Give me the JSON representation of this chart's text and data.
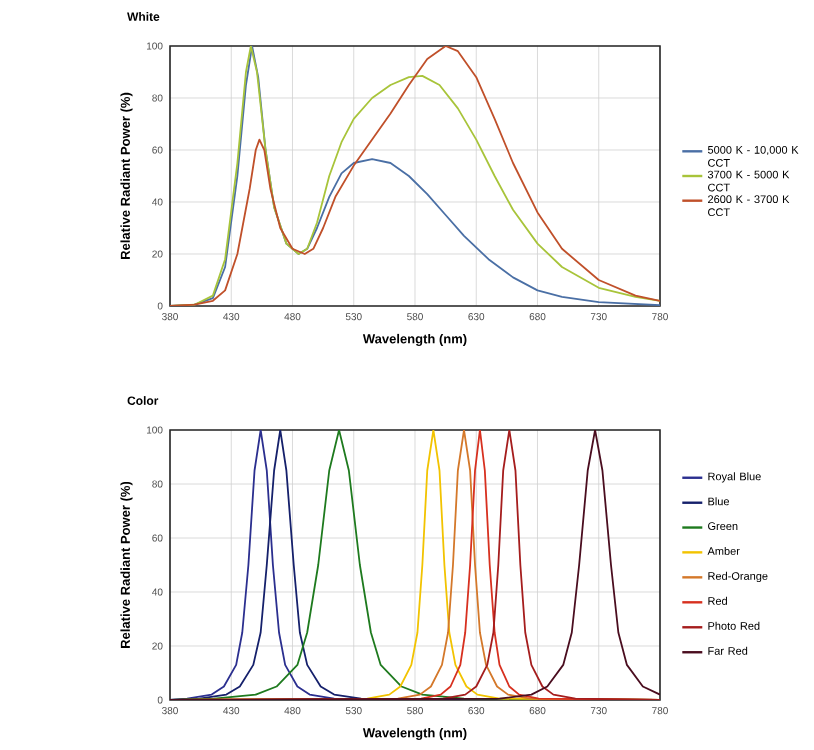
{
  "chart_data": [
    {
      "type": "line",
      "title": "White",
      "xlabel": "Wavelength (nm)",
      "ylabel": "Relative Radiant Power (%)",
      "xlim": [
        380,
        780
      ],
      "ylim": [
        0,
        100
      ],
      "xticks": [
        380,
        430,
        480,
        530,
        580,
        630,
        680,
        730,
        780
      ],
      "yticks": [
        0,
        20,
        40,
        60,
        80,
        100
      ],
      "grid": true,
      "legend": "right",
      "series": [
        {
          "name": "5000 K - 10,000 K CCT",
          "color": "#4a6fa5",
          "x": [
            380,
            400,
            415,
            425,
            435,
            442,
            447,
            452,
            458,
            465,
            475,
            485,
            492,
            500,
            510,
            520,
            530,
            545,
            560,
            575,
            590,
            605,
            620,
            640,
            660,
            680,
            700,
            730,
            780
          ],
          "values": [
            0,
            0.5,
            3,
            15,
            50,
            85,
            100,
            88,
            60,
            38,
            24,
            20,
            22,
            30,
            42,
            51,
            55,
            56.5,
            55,
            50,
            43,
            35,
            27,
            18,
            11,
            6,
            3.5,
            1.5,
            0.3
          ]
        },
        {
          "name": "3700 K - 5000 K CCT",
          "color": "#a8c43a",
          "x": [
            380,
            400,
            415,
            425,
            435,
            442,
            446,
            451,
            458,
            465,
            475,
            485,
            492,
            500,
            510,
            520,
            530,
            545,
            560,
            575,
            586,
            600,
            615,
            630,
            645,
            660,
            680,
            700,
            730,
            760,
            780
          ],
          "values": [
            0,
            0.5,
            4,
            18,
            55,
            90,
            100,
            90,
            60,
            38,
            24,
            20,
            22,
            32,
            50,
            63,
            72,
            80,
            85,
            88,
            88.5,
            85,
            76,
            64,
            50,
            37,
            24,
            15,
            7,
            3.5,
            2
          ]
        },
        {
          "name": "2600 K - 3700 K CCT",
          "color": "#c0502a",
          "x": [
            380,
            400,
            415,
            425,
            435,
            445,
            450,
            453,
            457,
            462,
            470,
            480,
            490,
            497,
            505,
            515,
            530,
            545,
            560,
            575,
            590,
            605,
            615,
            630,
            645,
            660,
            680,
            700,
            730,
            760,
            780
          ],
          "values": [
            0,
            0.5,
            2,
            6,
            20,
            45,
            60,
            64,
            60,
            45,
            30,
            22,
            20,
            22,
            30,
            42,
            54,
            64,
            74,
            85,
            95,
            100,
            98,
            88,
            72,
            55,
            36,
            22,
            10,
            4,
            2
          ]
        }
      ]
    },
    {
      "type": "line",
      "title": "Color",
      "xlabel": "Wavelength (nm)",
      "ylabel": "Relative Radiant Power (%)",
      "xlim": [
        380,
        780
      ],
      "ylim": [
        0,
        100
      ],
      "xticks": [
        380,
        430,
        480,
        530,
        580,
        630,
        680,
        730,
        780
      ],
      "yticks": [
        0,
        20,
        40,
        60,
        80,
        100
      ],
      "grid": true,
      "legend": "right",
      "series": [
        {
          "name": "Royal Blue",
          "color": "#2b2f8f",
          "x": [
            380,
            394,
            414,
            424,
            434,
            439,
            444,
            449,
            454,
            459,
            464,
            469,
            474,
            484,
            494,
            514,
            780
          ],
          "values": [
            0,
            0.5,
            2,
            5,
            13,
            25,
            50,
            85,
            100,
            85,
            50,
            25,
            13,
            5,
            2,
            0.5,
            0
          ]
        },
        {
          "name": "Blue",
          "color": "#15206b",
          "x": [
            380,
            404,
            426,
            437,
            448,
            454,
            459,
            465,
            470,
            475,
            481,
            486,
            492,
            503,
            514,
            536,
            780
          ],
          "values": [
            0,
            0.5,
            2,
            5,
            13,
            25,
            50,
            85,
            100,
            85,
            50,
            25,
            13,
            5,
            2,
            0.5,
            0
          ]
        },
        {
          "name": "Green",
          "color": "#1e7a1e",
          "x": [
            380,
            416,
            450,
            467,
            484,
            492,
            501,
            510,
            518,
            526,
            535,
            544,
            552,
            569,
            586,
            620,
            780
          ],
          "values": [
            0,
            0.5,
            2,
            5,
            13,
            25,
            50,
            85,
            100,
            85,
            50,
            25,
            13,
            5,
            2,
            0.5,
            0
          ]
        },
        {
          "name": "Amber",
          "color": "#f2c300",
          "x": [
            380,
            541,
            559,
            568,
            577,
            582,
            586,
            590,
            595,
            600,
            604,
            608,
            613,
            622,
            631,
            649,
            780
          ],
          "values": [
            0,
            0.5,
            2,
            5,
            13,
            25,
            50,
            85,
            100,
            85,
            50,
            25,
            13,
            5,
            2,
            0.5,
            0
          ]
        },
        {
          "name": "Red-Orange",
          "color": "#d4782a",
          "x": [
            380,
            566,
            584,
            593,
            602,
            607,
            611,
            615,
            620,
            625,
            629,
            633,
            638,
            647,
            656,
            674,
            780
          ],
          "values": [
            0,
            0.5,
            2,
            5,
            13,
            25,
            50,
            85,
            100,
            85,
            50,
            25,
            13,
            5,
            2,
            0.5,
            0
          ]
        },
        {
          "name": "Red",
          "color": "#d7301f",
          "x": [
            380,
            585,
            601,
            609,
            617,
            621,
            625,
            629,
            633,
            637,
            641,
            645,
            649,
            657,
            665,
            681,
            780
          ],
          "values": [
            0,
            0.5,
            2,
            5,
            13,
            25,
            50,
            85,
            100,
            85,
            50,
            25,
            13,
            5,
            2,
            0.5,
            0
          ]
        },
        {
          "name": "Photo Red",
          "color": "#a51d1d",
          "x": [
            380,
            603,
            621,
            630,
            639,
            644,
            648,
            652,
            657,
            662,
            666,
            670,
            675,
            684,
            693,
            711,
            780
          ],
          "values": [
            0,
            0.5,
            2,
            5,
            13,
            25,
            50,
            85,
            100,
            85,
            50,
            25,
            13,
            5,
            2,
            0.5,
            0
          ]
        },
        {
          "name": "Far Red",
          "color": "#4a0d1f",
          "x": [
            380,
            649,
            675,
            688,
            701,
            708,
            714,
            721,
            727,
            733,
            740,
            746,
            753,
            766,
            780
          ],
          "values": [
            0,
            0.5,
            2,
            5,
            13,
            25,
            50,
            85,
            100,
            85,
            50,
            25,
            13,
            5,
            2
          ]
        }
      ]
    }
  ]
}
